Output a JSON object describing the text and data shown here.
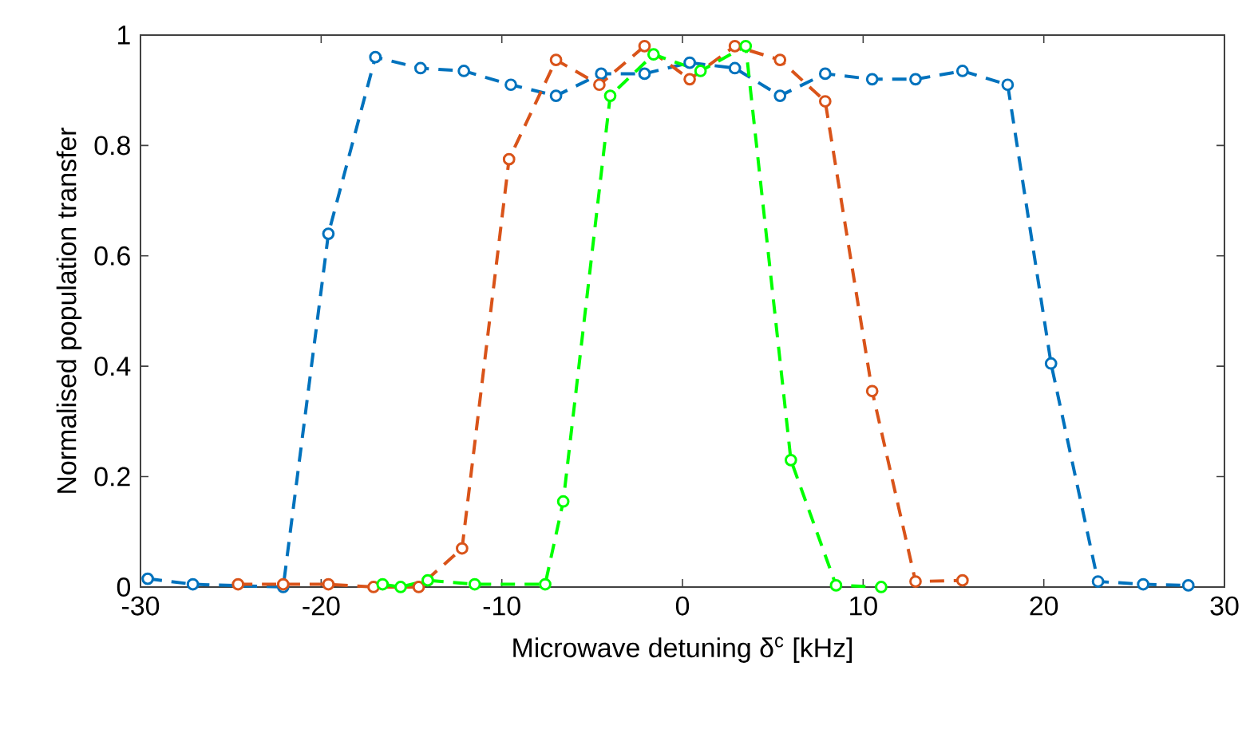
{
  "chart_data": {
    "type": "line",
    "xlabel": "Microwave detuning δ$^{c}$ [kHz]",
    "ylabel": "Normalised population transfer",
    "xlim": [
      -30,
      30
    ],
    "ylim": [
      0,
      1
    ],
    "xticks": [
      -30,
      -20,
      -10,
      0,
      10,
      20,
      30
    ],
    "yticks": [
      0,
      0.2,
      0.4,
      0.6,
      0.8,
      1
    ],
    "marker": "circle",
    "line_style": "dashed",
    "grid": false,
    "series": [
      {
        "color": "#0072bd",
        "x": [
          -29.6,
          -27.1,
          -22.1,
          -19.6,
          -17.0,
          -14.5,
          -12.1,
          -9.5,
          -7.0,
          -4.5,
          -2.1,
          0.4,
          2.9,
          5.4,
          7.9,
          10.5,
          12.9,
          15.5,
          18.0,
          20.4,
          23.0,
          25.5,
          28.0
        ],
        "values": [
          0.015,
          0.005,
          0.0,
          0.64,
          0.96,
          0.94,
          0.935,
          0.91,
          0.89,
          0.93,
          0.93,
          0.95,
          0.94,
          0.89,
          0.93,
          0.92,
          0.92,
          0.935,
          0.91,
          0.405,
          0.01,
          0.005,
          0.003
        ]
      },
      {
        "color": "#d95319",
        "x": [
          -24.6,
          -22.1,
          -19.6,
          -17.1,
          -14.6,
          -12.2,
          -9.6,
          -7.0,
          -4.6,
          -2.1,
          0.4,
          2.9,
          5.4,
          7.9,
          10.5,
          12.9,
          15.5
        ],
        "values": [
          0.005,
          0.005,
          0.005,
          0.0,
          0.0,
          0.07,
          0.775,
          0.955,
          0.91,
          0.98,
          0.92,
          0.98,
          0.955,
          0.88,
          0.355,
          0.01,
          0.012
        ]
      },
      {
        "color": "#00ff00",
        "x": [
          -16.6,
          -15.6,
          -14.1,
          -11.5,
          -7.6,
          -6.6,
          -4.0,
          -1.6,
          1.0,
          3.5,
          6.0,
          8.5,
          11.0
        ],
        "values": [
          0.005,
          0.0,
          0.012,
          0.005,
          0.005,
          0.155,
          0.89,
          0.965,
          0.935,
          0.98,
          0.23,
          0.003,
          0.0
        ]
      }
    ]
  }
}
